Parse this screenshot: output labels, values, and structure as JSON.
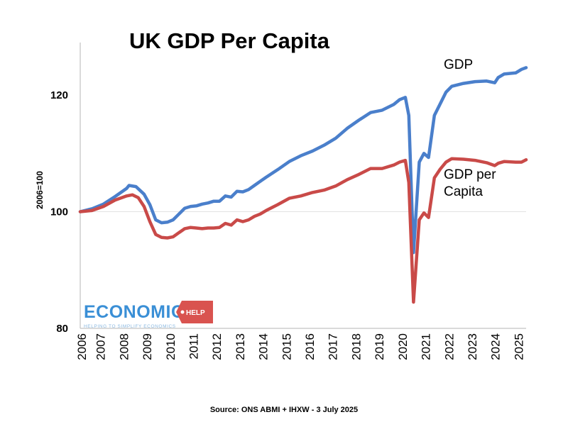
{
  "chart_data": {
    "type": "line",
    "title": "UK GDP Per Capita",
    "ylabel": "2006=100",
    "xlabel": "",
    "ylim": [
      80,
      130
    ],
    "yticks": [
      80,
      100,
      120
    ],
    "xlim": [
      2006,
      2025.2
    ],
    "x_tick_labels": [
      "2006",
      "2007",
      "2008",
      "2009",
      "2010",
      "2011",
      "2012",
      "2013",
      "2014",
      "2015",
      "2016",
      "2017",
      "2018",
      "2019",
      "2020",
      "2021",
      "2022",
      "2023",
      "2024",
      "2025"
    ],
    "source": "Source: ONS ABMI + IHXW - 3 July 2025",
    "series": [
      {
        "name": "GDP",
        "color": "#4a7fcb",
        "points": [
          [
            2006.0,
            100.0
          ],
          [
            2006.5,
            100.5
          ],
          [
            2007.0,
            101.3
          ],
          [
            2007.5,
            102.6
          ],
          [
            2008.0,
            104.0
          ],
          [
            2008.1,
            104.5
          ],
          [
            2008.4,
            104.3
          ],
          [
            2008.75,
            103.0
          ],
          [
            2009.0,
            101.2
          ],
          [
            2009.25,
            98.6
          ],
          [
            2009.5,
            98.1
          ],
          [
            2009.75,
            98.2
          ],
          [
            2010.0,
            98.6
          ],
          [
            2010.25,
            99.6
          ],
          [
            2010.5,
            100.6
          ],
          [
            2010.75,
            100.9
          ],
          [
            2011.0,
            101.0
          ],
          [
            2011.25,
            101.3
          ],
          [
            2011.5,
            101.5
          ],
          [
            2011.75,
            101.8
          ],
          [
            2012.0,
            101.8
          ],
          [
            2012.25,
            102.7
          ],
          [
            2012.5,
            102.5
          ],
          [
            2012.75,
            103.5
          ],
          [
            2013.0,
            103.4
          ],
          [
            2013.25,
            103.8
          ],
          [
            2013.5,
            104.5
          ],
          [
            2013.75,
            105.2
          ],
          [
            2014.0,
            105.9
          ],
          [
            2014.5,
            107.2
          ],
          [
            2015.0,
            108.6
          ],
          [
            2015.5,
            109.6
          ],
          [
            2016.0,
            110.4
          ],
          [
            2016.5,
            111.4
          ],
          [
            2017.0,
            112.6
          ],
          [
            2017.5,
            114.3
          ],
          [
            2018.0,
            115.7
          ],
          [
            2018.5,
            117.0
          ],
          [
            2019.0,
            117.4
          ],
          [
            2019.5,
            118.4
          ],
          [
            2019.75,
            119.2
          ],
          [
            2020.0,
            119.6
          ],
          [
            2020.15,
            116.5
          ],
          [
            2020.35,
            93.0
          ],
          [
            2020.6,
            108.5
          ],
          [
            2020.8,
            110.0
          ],
          [
            2021.0,
            109.3
          ],
          [
            2021.25,
            116.5
          ],
          [
            2021.5,
            118.5
          ],
          [
            2021.75,
            120.5
          ],
          [
            2022.0,
            121.5
          ],
          [
            2022.5,
            122.0
          ],
          [
            2023.0,
            122.3
          ],
          [
            2023.5,
            122.4
          ],
          [
            2023.85,
            122.1
          ],
          [
            2024.0,
            123.0
          ],
          [
            2024.25,
            123.6
          ],
          [
            2024.75,
            123.8
          ],
          [
            2025.0,
            124.4
          ],
          [
            2025.2,
            124.7
          ]
        ]
      },
      {
        "name": "GDP per Capita",
        "color": "#c94a48",
        "points": [
          [
            2006.0,
            100.0
          ],
          [
            2006.5,
            100.2
          ],
          [
            2007.0,
            100.9
          ],
          [
            2007.5,
            102.0
          ],
          [
            2008.0,
            102.7
          ],
          [
            2008.25,
            102.9
          ],
          [
            2008.5,
            102.4
          ],
          [
            2008.75,
            100.9
          ],
          [
            2009.0,
            98.3
          ],
          [
            2009.25,
            96.1
          ],
          [
            2009.5,
            95.6
          ],
          [
            2009.75,
            95.5
          ],
          [
            2010.0,
            95.7
          ],
          [
            2010.25,
            96.4
          ],
          [
            2010.5,
            97.1
          ],
          [
            2010.75,
            97.3
          ],
          [
            2011.0,
            97.2
          ],
          [
            2011.25,
            97.1
          ],
          [
            2011.5,
            97.2
          ],
          [
            2011.75,
            97.2
          ],
          [
            2012.0,
            97.3
          ],
          [
            2012.25,
            98.0
          ],
          [
            2012.5,
            97.7
          ],
          [
            2012.75,
            98.6
          ],
          [
            2013.0,
            98.3
          ],
          [
            2013.25,
            98.6
          ],
          [
            2013.5,
            99.2
          ],
          [
            2013.75,
            99.6
          ],
          [
            2014.0,
            100.2
          ],
          [
            2014.5,
            101.2
          ],
          [
            2015.0,
            102.3
          ],
          [
            2015.5,
            102.7
          ],
          [
            2016.0,
            103.3
          ],
          [
            2016.5,
            103.7
          ],
          [
            2017.0,
            104.4
          ],
          [
            2017.5,
            105.5
          ],
          [
            2018.0,
            106.4
          ],
          [
            2018.5,
            107.4
          ],
          [
            2019.0,
            107.4
          ],
          [
            2019.5,
            108.0
          ],
          [
            2019.75,
            108.5
          ],
          [
            2020.0,
            108.8
          ],
          [
            2020.15,
            105.0
          ],
          [
            2020.35,
            84.5
          ],
          [
            2020.6,
            98.6
          ],
          [
            2020.8,
            99.8
          ],
          [
            2021.0,
            99.0
          ],
          [
            2021.25,
            105.8
          ],
          [
            2021.5,
            107.3
          ],
          [
            2021.75,
            108.5
          ],
          [
            2022.0,
            109.1
          ],
          [
            2022.5,
            109.0
          ],
          [
            2023.0,
            108.8
          ],
          [
            2023.5,
            108.4
          ],
          [
            2023.85,
            107.9
          ],
          [
            2024.0,
            108.3
          ],
          [
            2024.25,
            108.6
          ],
          [
            2024.75,
            108.5
          ],
          [
            2025.0,
            108.5
          ],
          [
            2025.2,
            108.9
          ]
        ]
      }
    ],
    "labels": {
      "gdp": "GDP",
      "gdp_per_capita_line1": "GDP per",
      "gdp_per_capita_line2": "Capita"
    },
    "grid_line_at": 100
  },
  "logo": {
    "main": "ECONOMICS",
    "tag": "HELP",
    "sub": "HELPING TO SIMPLIFY ECONOMICS"
  }
}
